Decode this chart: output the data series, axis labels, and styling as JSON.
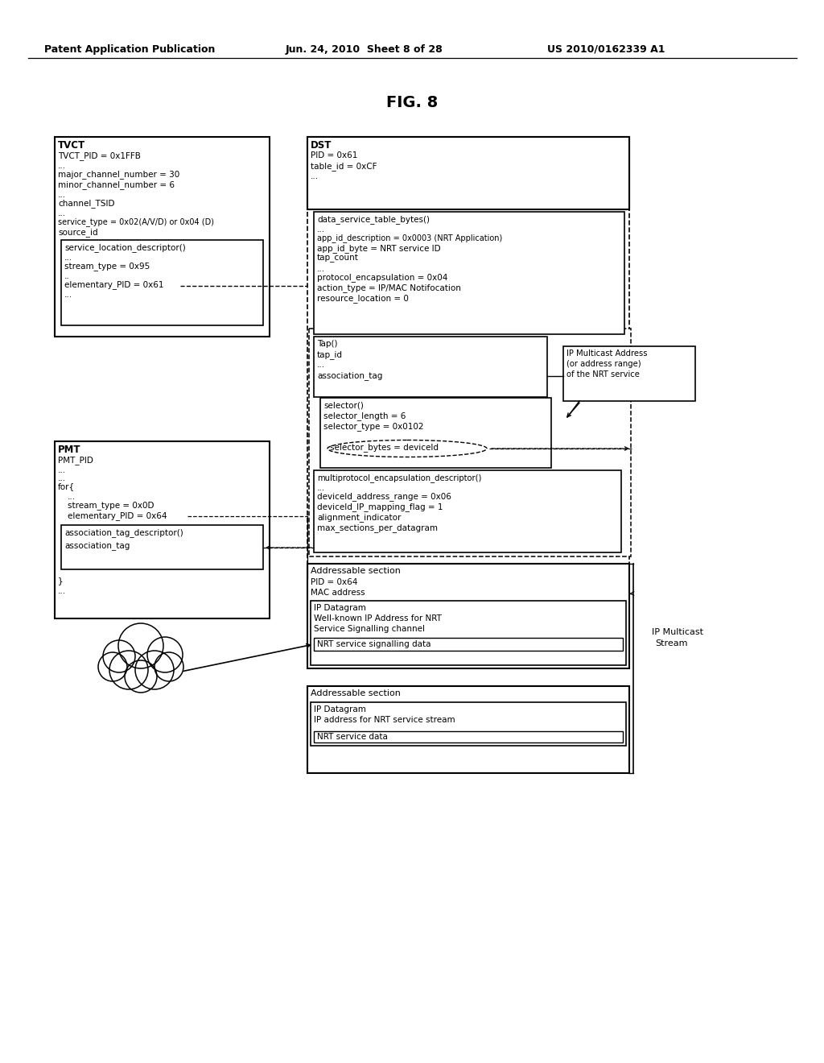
{
  "bg_color": "#ffffff",
  "header_left": "Patent Application Publication",
  "header_center": "Jun. 24, 2010  Sheet 8 of 28",
  "header_right": "US 2010/0162339 A1",
  "title": "FIG. 8"
}
